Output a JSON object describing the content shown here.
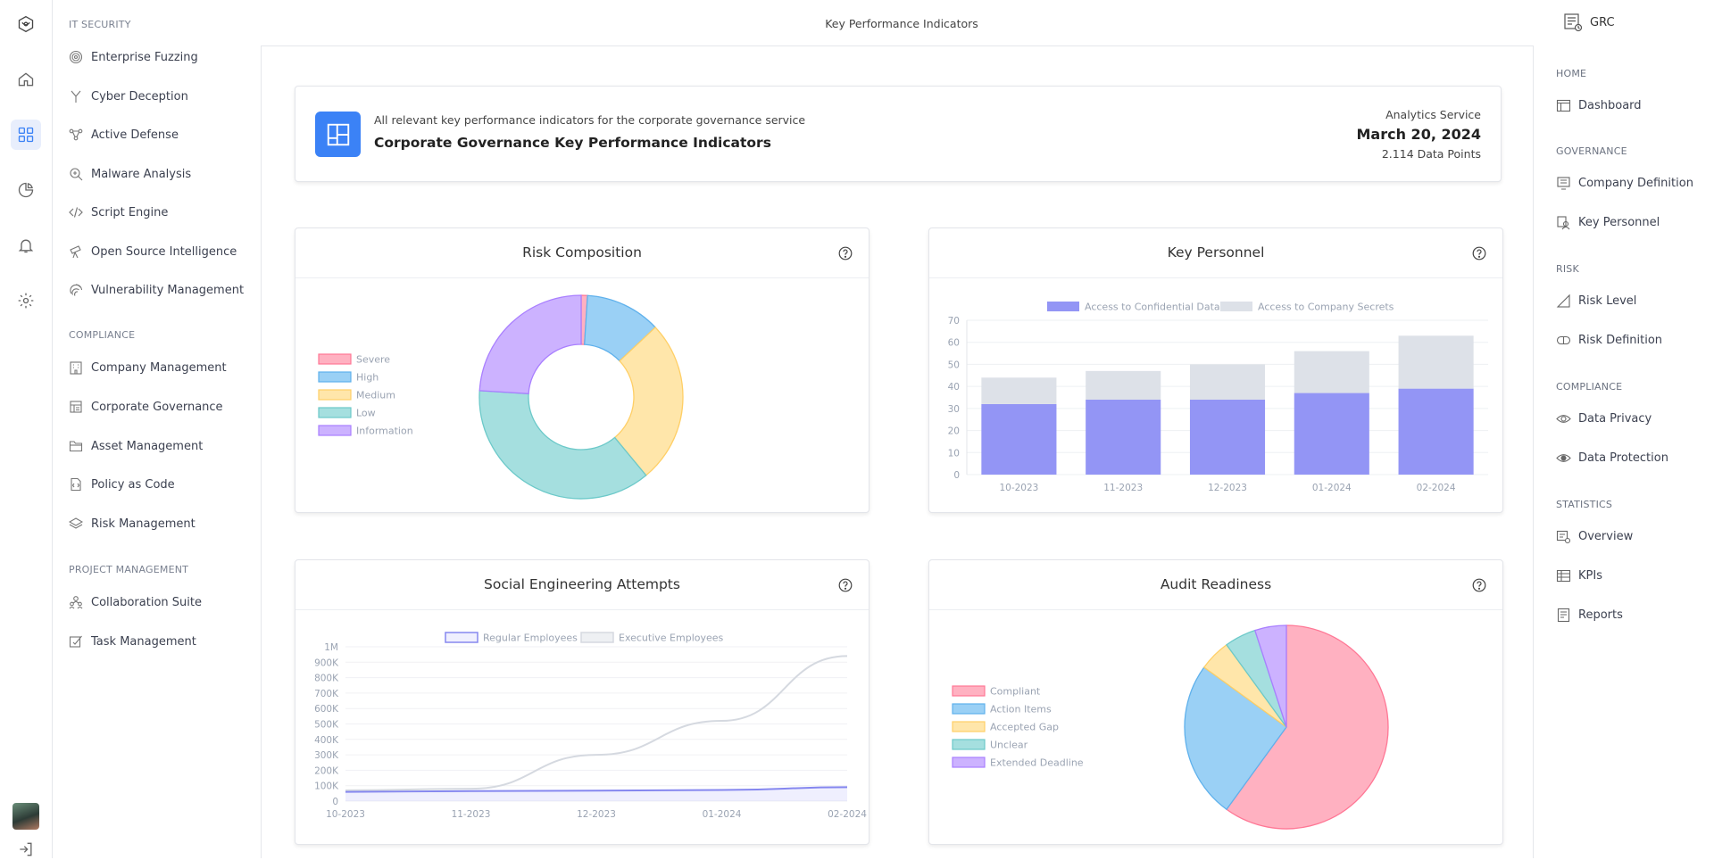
{
  "topbar": {
    "title": "Key Performance Indicators"
  },
  "left_nav": {
    "sections": [
      {
        "title": "IT SECURITY",
        "items": [
          {
            "label": "Enterprise Fuzzing",
            "icon": "target-icon"
          },
          {
            "label": "Cyber Deception",
            "icon": "fork-icon"
          },
          {
            "label": "Active Defense",
            "icon": "network-icon"
          },
          {
            "label": "Malware Analysis",
            "icon": "bug-icon"
          },
          {
            "label": "Script Engine",
            "icon": "code-icon"
          },
          {
            "label": "Open Source Intelligence",
            "icon": "telescope-icon"
          },
          {
            "label": "Vulnerability Management",
            "icon": "fingerprint-icon"
          }
        ]
      },
      {
        "title": "COMPLIANCE",
        "items": [
          {
            "label": "Company Management",
            "icon": "building-icon"
          },
          {
            "label": "Corporate Governance",
            "icon": "governance-icon"
          },
          {
            "label": "Asset Management",
            "icon": "folder-icon"
          },
          {
            "label": "Policy as Code",
            "icon": "policy-icon"
          },
          {
            "label": "Risk Management",
            "icon": "layers-icon"
          }
        ]
      },
      {
        "title": "PROJECT MANAGEMENT",
        "items": [
          {
            "label": "Collaboration Suite",
            "icon": "team-icon"
          },
          {
            "label": "Task Management",
            "icon": "task-icon"
          }
        ]
      }
    ]
  },
  "header_card": {
    "subtitle": "All relevant key performance indicators for the corporate governance service",
    "title": "Corporate Governance Key Performance Indicators",
    "service": "Analytics Service",
    "date": "March 20, 2024",
    "points": "2.114 Data Points"
  },
  "cards": {
    "risk": {
      "title": "Risk Composition"
    },
    "personnel": {
      "title": "Key Personnel"
    },
    "social": {
      "title": "Social Engineering Attempts"
    },
    "audit": {
      "title": "Audit Readiness"
    }
  },
  "right_nav": {
    "brand": "GRC",
    "sections": [
      {
        "title": "HOME",
        "items": [
          {
            "label": "Dashboard",
            "icon": "dashboard-icon"
          }
        ]
      },
      {
        "title": "GOVERNANCE",
        "items": [
          {
            "label": "Company Definition",
            "icon": "company-icon"
          },
          {
            "label": "Key Personnel",
            "icon": "person-icon"
          }
        ]
      },
      {
        "title": "RISK",
        "items": [
          {
            "label": "Risk Level",
            "icon": "level-icon"
          },
          {
            "label": "Risk Definition",
            "icon": "definition-icon"
          }
        ]
      },
      {
        "title": "COMPLIANCE",
        "items": [
          {
            "label": "Data Privacy",
            "icon": "eye-icon"
          },
          {
            "label": "Data Protection",
            "icon": "eye-filled-icon"
          }
        ]
      },
      {
        "title": "STATISTICS",
        "items": [
          {
            "label": "Overview",
            "icon": "overview-icon"
          },
          {
            "label": "KPIs",
            "icon": "table-icon"
          },
          {
            "label": "Reports",
            "icon": "reports-icon"
          }
        ]
      }
    ]
  },
  "colors": {
    "accent": "#3b82f6",
    "severe": "#ffb1c1",
    "high": "#9ad0f5",
    "medium": "#ffe6aa",
    "low": "#a5dfdf",
    "information": "#ccb2ff",
    "confidential": "#9395f5",
    "secrets": "#dde1e8"
  },
  "chart_data": [
    {
      "type": "pie",
      "subtype": "doughnut",
      "title": "Risk Composition",
      "categories": [
        "Severe",
        "High",
        "Medium",
        "Low",
        "Information"
      ],
      "values": [
        1,
        12,
        26,
        37,
        24
      ],
      "legend": "left"
    },
    {
      "type": "bar",
      "stacked": true,
      "title": "Key Personnel",
      "categories": [
        "10-2023",
        "11-2023",
        "12-2023",
        "01-2024",
        "02-2024"
      ],
      "series": [
        {
          "name": "Access to Confidential Data",
          "values": [
            32,
            34,
            34,
            37,
            39
          ]
        },
        {
          "name": "Access to Company Secrets",
          "values": [
            12,
            13,
            16,
            19,
            24
          ]
        }
      ],
      "ylim": [
        0,
        70
      ],
      "yticks": [
        0,
        10,
        20,
        30,
        40,
        50,
        60,
        70
      ],
      "legend": "top"
    },
    {
      "type": "area",
      "title": "Social Engineering Attempts",
      "categories": [
        "10-2023",
        "11-2023",
        "12-2023",
        "01-2024",
        "02-2024"
      ],
      "series": [
        {
          "name": "Regular Employees",
          "values": [
            60000,
            65000,
            68000,
            72000,
            90000
          ]
        },
        {
          "name": "Executive Employees",
          "values": [
            70000,
            80000,
            300000,
            520000,
            940000
          ]
        }
      ],
      "ylim": [
        0,
        1000000
      ],
      "yticks": [
        "0",
        "100K",
        "200K",
        "300K",
        "400K",
        "500K",
        "600K",
        "700K",
        "800K",
        "900K",
        "1M"
      ],
      "legend": "top"
    },
    {
      "type": "pie",
      "title": "Audit Readiness",
      "categories": [
        "Compliant",
        "Action Items",
        "Accepted Gap",
        "Unclear",
        "Extended Deadline"
      ],
      "values": [
        60,
        25,
        5,
        5,
        5
      ],
      "legend": "left"
    }
  ]
}
